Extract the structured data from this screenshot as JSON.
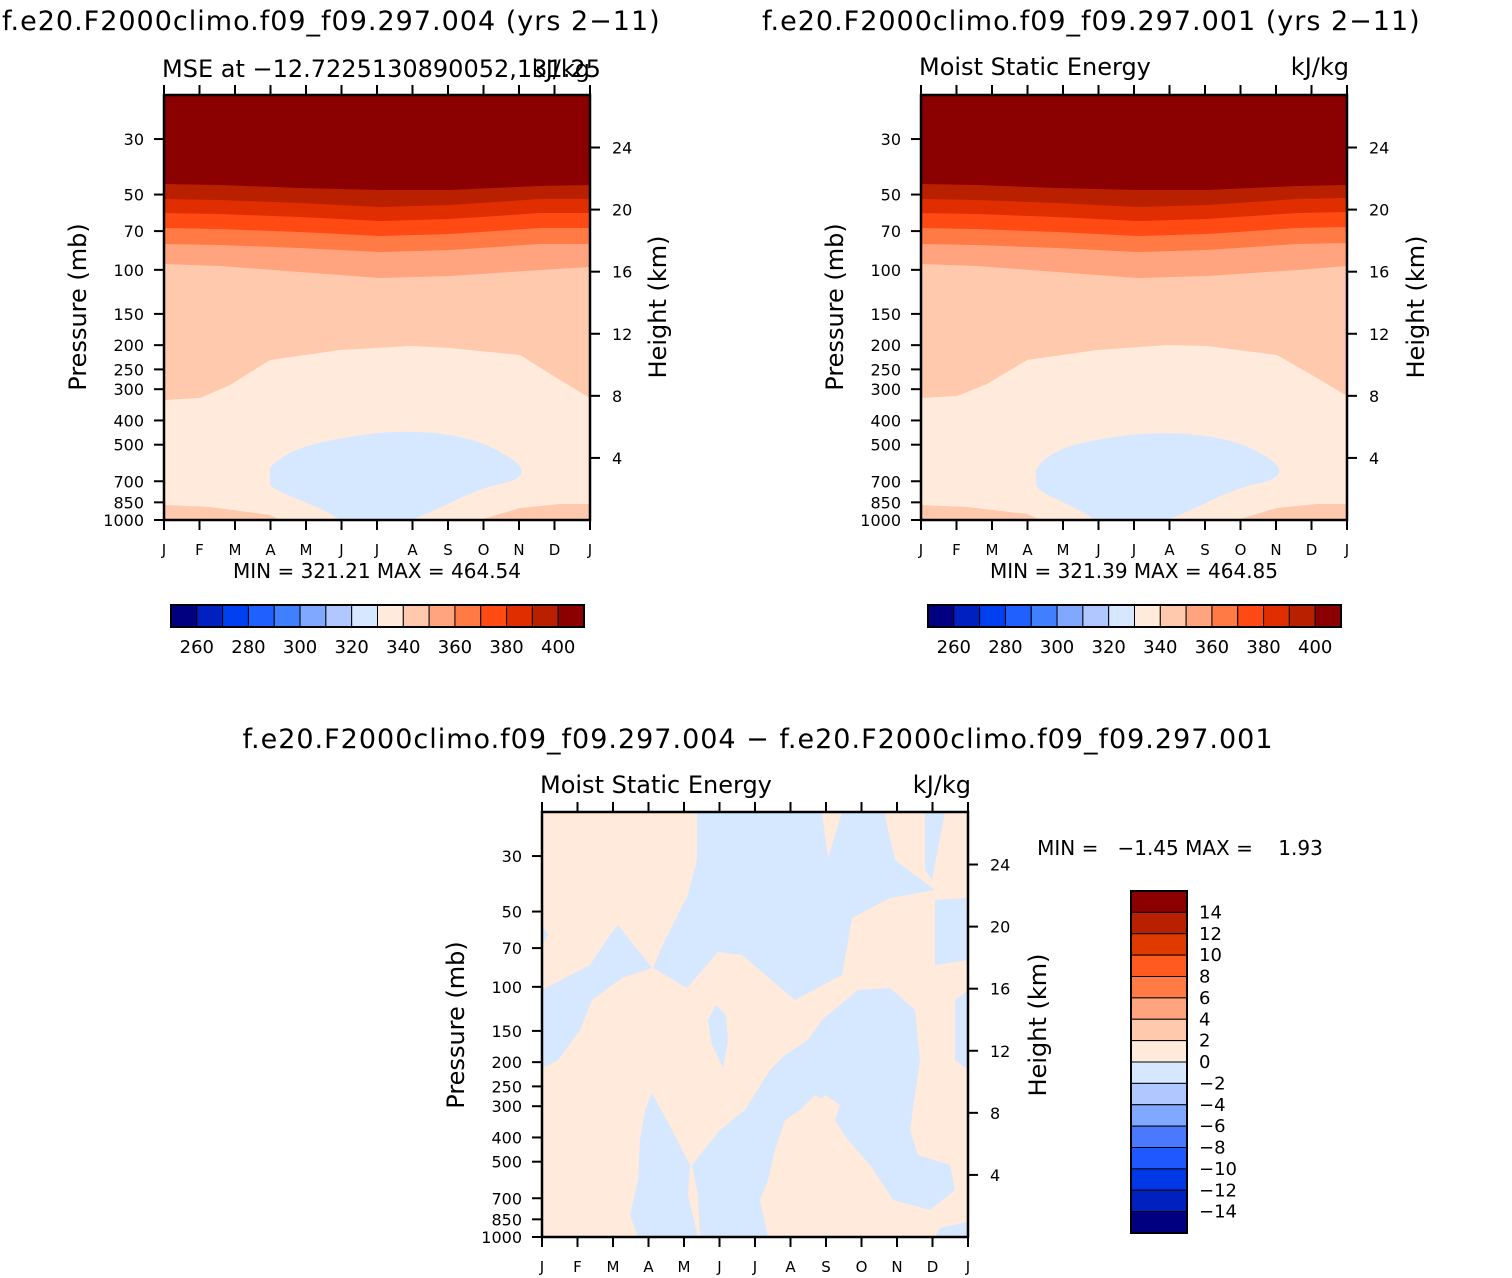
{
  "chart_data": [
    {
      "type": "heatmap",
      "title": "f.e20.F2000climo.f09_f09.297.004 (yrs 2−11)",
      "subtitle_left": "MSE at −12.7225130890052,131.25",
      "subtitle_right": "kJ/kg",
      "ylabel": "Pressure (mb)",
      "ylabel_right": "Height (km)",
      "x_ticks": [
        "J",
        "F",
        "M",
        "A",
        "M",
        "J",
        "J",
        "A",
        "S",
        "O",
        "N",
        "D",
        "J"
      ],
      "y_ticks": [
        "30",
        "50",
        "70",
        "100",
        "150",
        "200",
        "250",
        "300",
        "400",
        "500",
        "700",
        "850",
        "1000"
      ],
      "y_ticks_right": [
        "24",
        "20",
        "16",
        "12",
        "8",
        "4"
      ],
      "stats": "MIN = 321.21 MAX = 464.54",
      "levels": [
        250,
        260,
        270,
        280,
        290,
        300,
        310,
        320,
        330,
        340,
        350,
        360,
        370,
        380,
        390,
        400
      ],
      "colorbar_labels": [
        "260",
        "280",
        "300",
        "320",
        "340",
        "360",
        "380",
        "400"
      ]
    },
    {
      "type": "heatmap",
      "title": "f.e20.F2000climo.f09_f09.297.001 (yrs 2−11)",
      "subtitle_left": "Moist Static Energy",
      "subtitle_right": "kJ/kg",
      "ylabel": "Pressure (mb)",
      "ylabel_right": "Height (km)",
      "x_ticks": [
        "J",
        "F",
        "M",
        "A",
        "M",
        "J",
        "J",
        "A",
        "S",
        "O",
        "N",
        "D",
        "J"
      ],
      "y_ticks": [
        "30",
        "50",
        "70",
        "100",
        "150",
        "200",
        "250",
        "300",
        "400",
        "500",
        "700",
        "850",
        "1000"
      ],
      "y_ticks_right": [
        "24",
        "20",
        "16",
        "12",
        "8",
        "4"
      ],
      "stats": "MIN = 321.39 MAX = 464.85",
      "levels": [
        250,
        260,
        270,
        280,
        290,
        300,
        310,
        320,
        330,
        340,
        350,
        360,
        370,
        380,
        390,
        400
      ],
      "colorbar_labels": [
        "260",
        "280",
        "300",
        "320",
        "340",
        "360",
        "380",
        "400"
      ]
    },
    {
      "type": "heatmap",
      "title": "f.e20.F2000climo.f09_f09.297.004 − f.e20.F2000climo.f09_f09.297.001",
      "subtitle_left": "Moist Static Energy",
      "subtitle_right": "kJ/kg",
      "ylabel": "Pressure (mb)",
      "ylabel_right": "Height (km)",
      "x_ticks": [
        "J",
        "F",
        "M",
        "A",
        "M",
        "J",
        "J",
        "A",
        "S",
        "O",
        "N",
        "D",
        "J"
      ],
      "y_ticks": [
        "30",
        "50",
        "70",
        "100",
        "150",
        "200",
        "250",
        "300",
        "400",
        "500",
        "700",
        "850",
        "1000"
      ],
      "y_ticks_right": [
        "24",
        "20",
        "16",
        "12",
        "8",
        "4"
      ],
      "stats": "MIN =   −1.45 MAX =    1.93",
      "levels": [
        -14,
        -12,
        -10,
        -8,
        -6,
        -4,
        -2,
        0,
        2,
        4,
        6,
        8,
        10,
        12,
        14
      ],
      "colorbar_labels": [
        "14",
        "12",
        "10",
        "8",
        "6",
        "4",
        "2",
        "0",
        "−2",
        "−4",
        "−6",
        "−8",
        "−10",
        "−12",
        "−14"
      ]
    }
  ],
  "colors": {
    "scale16": [
      "#000080",
      "#0020c0",
      "#0040f0",
      "#2060ff",
      "#4080ff",
      "#80a8ff",
      "#b0c8ff",
      "#d6e8ff",
      "#ffeadb",
      "#ffc9ad",
      "#ffa47f",
      "#ff7a45",
      "#ff4a14",
      "#e02e00",
      "#b82000",
      "#8b0000"
    ],
    "diff16": [
      "#000080",
      "#0020c0",
      "#0038e8",
      "#2058ff",
      "#4a78ff",
      "#80a8ff",
      "#b0c8ff",
      "#d6e8ff",
      "#ffeadb",
      "#ffc9ad",
      "#ffa47f",
      "#ff7a45",
      "#ff5a20",
      "#e03a00",
      "#b82000",
      "#8b0000"
    ]
  }
}
